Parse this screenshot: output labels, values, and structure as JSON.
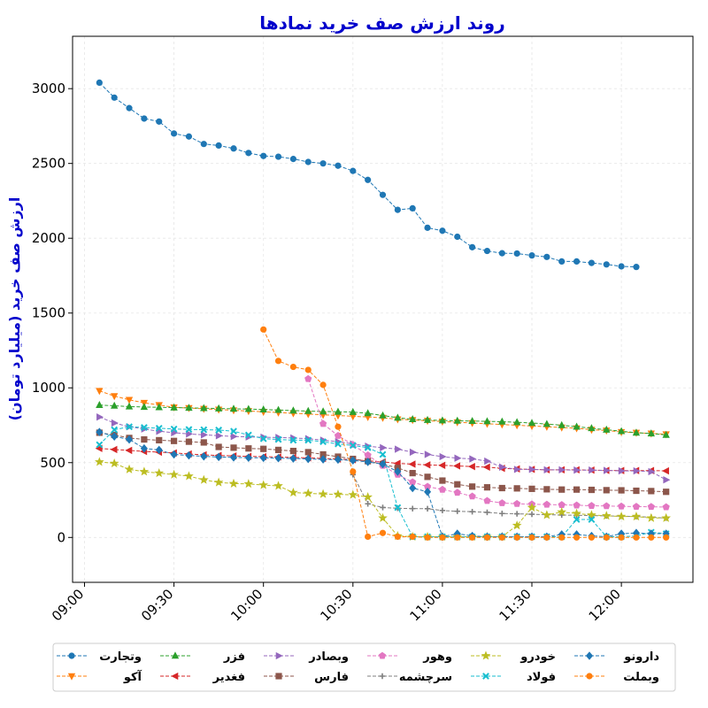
{
  "chart_data": {
    "type": "line",
    "title": "روند ارزش صف خرید نمادها",
    "ylabel": "ارزش صف خرید (میلیارد تومان)",
    "xlabel": "",
    "ylim": [
      -300,
      3350
    ],
    "xlim": [
      "08:56",
      "12:24"
    ],
    "x_ticks": [
      "09:00",
      "09:30",
      "10:00",
      "10:30",
      "11:00",
      "11:30",
      "12:00"
    ],
    "y_ticks": [
      0,
      500,
      1000,
      1500,
      2000,
      2500,
      3000
    ],
    "grid": true,
    "legend_position": "bottom-center",
    "series": [
      {
        "name": "وتجارت",
        "color": "#1f77b4",
        "marker": "circle",
        "x": [
          "09:05",
          "09:10",
          "09:15",
          "09:20",
          "09:25",
          "09:30",
          "09:35",
          "09:40",
          "09:45",
          "09:50",
          "09:55",
          "10:00",
          "10:05",
          "10:10",
          "10:15",
          "10:20",
          "10:25",
          "10:30",
          "10:35",
          "10:40",
          "10:45",
          "10:50",
          "10:55",
          "11:00",
          "11:05",
          "11:10",
          "11:15",
          "11:20",
          "11:25",
          "11:30",
          "11:35",
          "11:40",
          "11:45",
          "11:50",
          "11:55",
          "12:00",
          "12:05",
          "12:10",
          "12:15"
        ],
        "values": [
          3040,
          2940,
          2870,
          2800,
          2780,
          2700,
          2680,
          2630,
          2620,
          2600,
          2570,
          2550,
          2545,
          2530,
          2510,
          2500,
          2485,
          2450,
          2390,
          2290,
          2190,
          2200,
          2070,
          2050,
          2010,
          1940,
          1915,
          1900,
          1898,
          1885,
          1875,
          1845,
          1845,
          1835,
          1825,
          1812,
          1808,
          null,
          null
        ]
      },
      {
        "name": "آکو",
        "color": "#ff7f0e",
        "marker": "triangle-down",
        "x": [
          "09:05",
          "09:10",
          "09:15",
          "09:20",
          "09:25",
          "09:30",
          "09:35",
          "09:40",
          "09:45",
          "09:50",
          "09:55",
          "10:00",
          "10:05",
          "10:10",
          "10:15",
          "10:20",
          "10:25",
          "10:30",
          "10:35",
          "10:40",
          "10:45",
          "10:50",
          "10:55",
          "11:00",
          "11:05",
          "11:10",
          "11:15",
          "11:20",
          "11:25",
          "11:30",
          "11:35",
          "11:40",
          "11:45",
          "11:50",
          "11:55",
          "12:00",
          "12:05",
          "12:10",
          "12:15"
        ],
        "values": [
          980,
          945,
          920,
          900,
          885,
          870,
          865,
          860,
          855,
          850,
          845,
          840,
          835,
          830,
          825,
          820,
          815,
          810,
          805,
          800,
          790,
          785,
          780,
          775,
          770,
          765,
          760,
          755,
          750,
          745,
          740,
          735,
          730,
          720,
          715,
          705,
          700,
          695,
          690
        ]
      },
      {
        "name": "فزر",
        "color": "#2ca02c",
        "marker": "triangle-up",
        "x": [
          "09:05",
          "09:10",
          "09:15",
          "09:20",
          "09:25",
          "09:30",
          "09:35",
          "09:40",
          "09:45",
          "09:50",
          "09:55",
          "10:00",
          "10:05",
          "10:10",
          "10:15",
          "10:20",
          "10:25",
          "10:30",
          "10:35",
          "10:40",
          "10:45",
          "10:50",
          "10:55",
          "11:00",
          "11:05",
          "11:10",
          "11:15",
          "11:20",
          "11:25",
          "11:30",
          "11:35",
          "11:40",
          "11:45",
          "11:50",
          "11:55",
          "12:00",
          "12:05",
          "12:10",
          "12:15"
        ],
        "values": [
          885,
          880,
          875,
          872,
          870,
          868,
          866,
          864,
          862,
          860,
          858,
          855,
          852,
          848,
          845,
          842,
          840,
          838,
          830,
          815,
          800,
          790,
          785,
          782,
          780,
          778,
          776,
          774,
          770,
          765,
          758,
          750,
          740,
          730,
          720,
          710,
          700,
          695,
          685
        ]
      },
      {
        "name": "فغدیر",
        "color": "#d62728",
        "marker": "triangle-left",
        "x": [
          "09:05",
          "09:10",
          "09:15",
          "09:20",
          "09:25",
          "09:30",
          "09:35",
          "09:40",
          "09:45",
          "09:50",
          "09:55",
          "10:00",
          "10:05",
          "10:10",
          "10:15",
          "10:20",
          "10:25",
          "10:30",
          "10:35",
          "10:40",
          "10:45",
          "10:50",
          "10:55",
          "11:00",
          "11:05",
          "11:10",
          "11:15",
          "11:20",
          "11:25",
          "11:30",
          "11:35",
          "11:40",
          "11:45",
          "11:50",
          "11:55",
          "12:00",
          "12:05",
          "12:10",
          "12:15"
        ],
        "values": [
          595,
          588,
          582,
          575,
          570,
          565,
          558,
          552,
          548,
          545,
          542,
          540,
          538,
          535,
          532,
          528,
          524,
          520,
          512,
          505,
          495,
          490,
          485,
          482,
          478,
          474,
          470,
          462,
          458,
          455,
          452,
          452,
          452,
          450,
          448,
          447,
          447,
          447,
          445
        ]
      },
      {
        "name": "وبصادر",
        "color": "#9467bd",
        "marker": "triangle-right",
        "x": [
          "09:05",
          "09:10",
          "09:15",
          "09:20",
          "09:25",
          "09:30",
          "09:35",
          "09:40",
          "09:45",
          "09:50",
          "09:55",
          "10:00",
          "10:05",
          "10:10",
          "10:15",
          "10:20",
          "10:25",
          "10:30",
          "10:35",
          "10:40",
          "10:45",
          "10:50",
          "10:55",
          "11:00",
          "11:05",
          "11:10",
          "11:15",
          "11:20",
          "11:25",
          "11:30",
          "11:35",
          "11:40",
          "11:45",
          "11:50",
          "11:55",
          "12:00",
          "12:05",
          "12:10",
          "12:15"
        ],
        "values": [
          805,
          765,
          740,
          725,
          710,
          700,
          692,
          686,
          680,
          675,
          672,
          670,
          668,
          665,
          660,
          650,
          640,
          625,
          610,
          600,
          590,
          570,
          555,
          540,
          530,
          525,
          510,
          470,
          455,
          455,
          452,
          452,
          450,
          450,
          448,
          445,
          445,
          440,
          385
        ]
      },
      {
        "name": "فارس",
        "color": "#8c564b",
        "marker": "square",
        "x": [
          "09:05",
          "09:10",
          "09:15",
          "09:20",
          "09:25",
          "09:30",
          "09:35",
          "09:40",
          "09:45",
          "09:50",
          "09:55",
          "10:00",
          "10:05",
          "10:10",
          "10:15",
          "10:20",
          "10:25",
          "10:30",
          "10:35",
          "10:40",
          "10:45",
          "10:50",
          "10:55",
          "11:00",
          "11:05",
          "11:10",
          "11:15",
          "11:20",
          "11:25",
          "11:30",
          "11:35",
          "11:40",
          "11:45",
          "11:50",
          "11:55",
          "12:00",
          "12:05",
          "12:10",
          "12:15"
        ],
        "values": [
          700,
          685,
          665,
          655,
          650,
          645,
          640,
          635,
          605,
          600,
          595,
          592,
          585,
          578,
          570,
          555,
          540,
          525,
          510,
          490,
          465,
          430,
          405,
          380,
          355,
          340,
          335,
          330,
          328,
          325,
          322,
          320,
          320,
          318,
          316,
          315,
          312,
          310,
          305
        ]
      },
      {
        "name": "وهور",
        "color": "#e377c2",
        "marker": "pentagon",
        "x": [
          "10:15",
          "10:20",
          "10:25",
          "10:30",
          "10:35",
          "10:40",
          "10:45",
          "10:50",
          "10:55",
          "11:00",
          "11:05",
          "11:10",
          "11:15",
          "11:20",
          "11:25",
          "11:30",
          "11:35",
          "11:40",
          "11:45",
          "11:50",
          "11:55",
          "12:00",
          "12:05",
          "12:10",
          "12:15"
        ],
        "values": [
          1060,
          760,
          680,
          620,
          550,
          480,
          420,
          370,
          340,
          320,
          300,
          275,
          245,
          230,
          225,
          222,
          220,
          218,
          215,
          212,
          210,
          208,
          206,
          205,
          203
        ]
      },
      {
        "name": "سرچشمه",
        "color": "#7f7f7f",
        "marker": "plus",
        "x": [
          "10:30",
          "10:35",
          "10:40",
          "10:45",
          "10:50",
          "10:55",
          "11:00",
          "11:05",
          "11:10",
          "11:15",
          "11:20",
          "11:25",
          "11:30",
          "11:35",
          "11:40",
          "11:45",
          "11:50",
          "11:55",
          "12:00",
          "12:05",
          "12:10",
          "12:15"
        ],
        "values": [
          420,
          225,
          200,
          195,
          193,
          192,
          180,
          175,
          172,
          168,
          160,
          158,
          155,
          152,
          150,
          148,
          146,
          144,
          142,
          140,
          135,
          130
        ]
      },
      {
        "name": "خودرو",
        "color": "#bcbd22",
        "marker": "star",
        "x": [
          "09:05",
          "09:10",
          "09:15",
          "09:20",
          "09:25",
          "09:30",
          "09:35",
          "09:40",
          "09:45",
          "09:50",
          "09:55",
          "10:00",
          "10:05",
          "10:10",
          "10:15",
          "10:20",
          "10:25",
          "10:30",
          "10:35",
          "10:40",
          "10:45",
          "10:50",
          "10:55",
          "11:00",
          "11:05",
          "11:10",
          "11:15",
          "11:20",
          "11:25",
          "11:30",
          "11:35",
          "11:40",
          "11:45",
          "11:50",
          "11:55",
          "12:00",
          "12:05",
          "12:10",
          "12:15"
        ],
        "values": [
          505,
          495,
          455,
          440,
          430,
          420,
          410,
          385,
          368,
          360,
          358,
          350,
          345,
          300,
          295,
          290,
          288,
          285,
          270,
          130,
          10,
          5,
          5,
          5,
          5,
          5,
          5,
          5,
          80,
          200,
          150,
          170,
          160,
          150,
          145,
          140,
          140,
          130,
          130
        ]
      },
      {
        "name": "فولاد",
        "color": "#17becf",
        "marker": "x",
        "x": [
          "09:05",
          "09:10",
          "09:15",
          "09:20",
          "09:25",
          "09:30",
          "09:35",
          "09:40",
          "09:45",
          "09:50",
          "09:55",
          "10:00",
          "10:05",
          "10:10",
          "10:15",
          "10:20",
          "10:25",
          "10:30",
          "10:35",
          "10:40",
          "10:45",
          "10:50",
          "10:55",
          "11:00",
          "11:05",
          "11:10",
          "11:15",
          "11:20",
          "11:25",
          "11:30",
          "11:35",
          "11:40",
          "11:45",
          "11:50",
          "11:55",
          "12:00",
          "12:05",
          "12:10",
          "12:15"
        ],
        "values": [
          620,
          720,
          740,
          735,
          730,
          725,
          722,
          720,
          718,
          710,
          685,
          660,
          655,
          650,
          650,
          640,
          625,
          615,
          600,
          555,
          200,
          5,
          5,
          5,
          5,
          5,
          5,
          5,
          5,
          5,
          5,
          5,
          120,
          120,
          5,
          5,
          10,
          35,
          25
        ]
      },
      {
        "name": "دارونو",
        "color": "#1f77b4",
        "marker": "diamond",
        "x": [
          "09:05",
          "09:10",
          "09:15",
          "09:20",
          "09:25",
          "09:30",
          "09:35",
          "09:40",
          "09:45",
          "09:50",
          "09:55",
          "10:00",
          "10:05",
          "10:10",
          "10:15",
          "10:20",
          "10:25",
          "10:30",
          "10:35",
          "10:40",
          "10:45",
          "10:50",
          "10:55",
          "11:00",
          "11:05",
          "11:10",
          "11:15",
          "11:20",
          "11:25",
          "11:30",
          "11:35",
          "11:40",
          "11:45",
          "11:50",
          "11:55",
          "12:00",
          "12:05",
          "12:10",
          "12:15"
        ],
        "values": [
          705,
          675,
          655,
          595,
          585,
          555,
          548,
          542,
          538,
          535,
          533,
          532,
          530,
          528,
          525,
          522,
          520,
          515,
          505,
          490,
          440,
          330,
          305,
          5,
          25,
          10,
          5,
          5,
          5,
          5,
          5,
          20,
          20,
          10,
          5,
          25,
          30,
          25,
          25
        ]
      },
      {
        "name": "وبملت",
        "color": "#ff7f0e",
        "marker": "circle",
        "x": [
          "10:00",
          "10:05",
          "10:10",
          "10:15",
          "10:20",
          "10:25",
          "10:30",
          "10:35",
          "10:40",
          "10:45",
          "10:50",
          "10:55",
          "11:00",
          "11:05",
          "11:10",
          "11:15",
          "11:20",
          "11:25",
          "11:30",
          "11:35",
          "11:40",
          "11:45",
          "11:50",
          "11:55",
          "12:00",
          "12:05",
          "12:10",
          "12:15"
        ],
        "values": [
          1390,
          1180,
          1140,
          1120,
          1020,
          740,
          440,
          5,
          30,
          5,
          5,
          0,
          0,
          0,
          0,
          0,
          0,
          0,
          0,
          0,
          0,
          0,
          0,
          0,
          0,
          0,
          0,
          0
        ]
      }
    ]
  }
}
